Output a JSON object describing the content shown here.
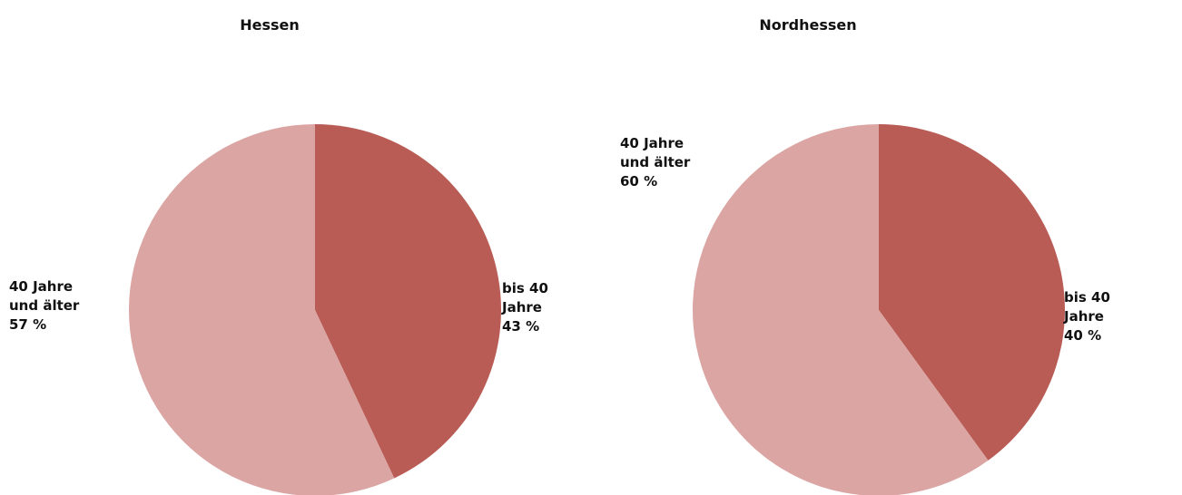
{
  "chart_data": [
    {
      "type": "pie",
      "title": "Hessen",
      "categories": [
        "bis 40 Jahre",
        "40 Jahre und älter"
      ],
      "values": [
        43,
        57
      ],
      "value_labels": [
        "43 %",
        "57 %"
      ],
      "colors": [
        "#b95c55",
        "#dba5a3"
      ]
    },
    {
      "type": "pie",
      "title": "Nordhessen",
      "categories": [
        "bis 40 Jahre",
        "40 Jahre und älter"
      ],
      "values": [
        40,
        60
      ],
      "value_labels": [
        "40 %",
        "60 %"
      ],
      "colors": [
        "#b95c55",
        "#dba5a3"
      ]
    }
  ]
}
